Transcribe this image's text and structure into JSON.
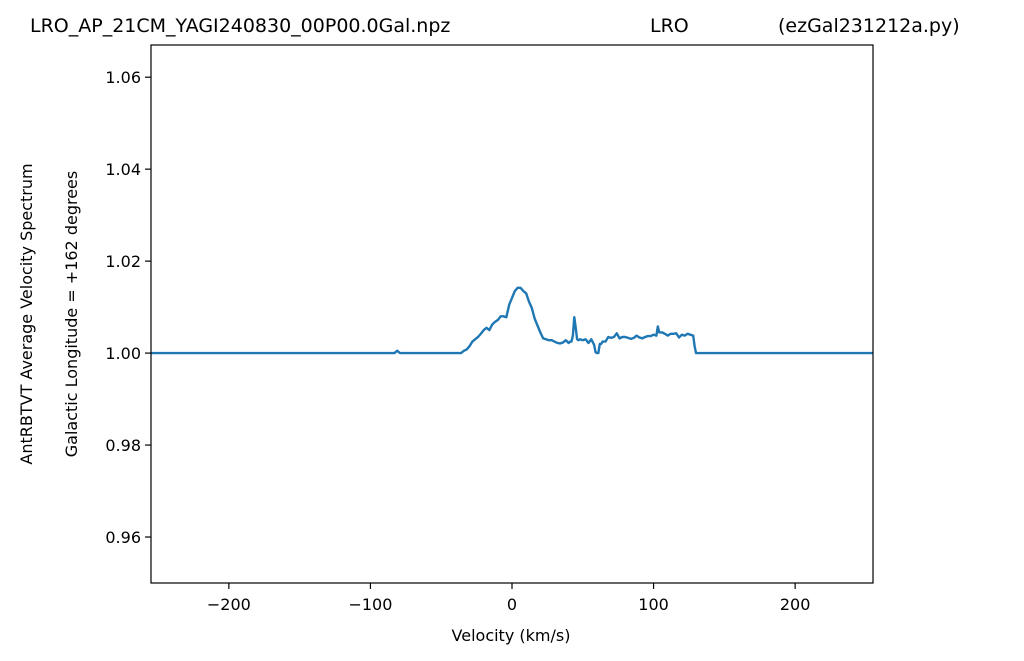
{
  "title": {
    "left": "LRO_AP_21CM_YAGI240830_00P00.0Gal.npz",
    "center": "LRO",
    "right": "(ezGal231212a.py)"
  },
  "chart_data": {
    "type": "line",
    "title": "LRO_AP_21CM_YAGI240830_00P00.0Gal.npz LRO (ezGal231212a.py)",
    "xlabel": "Velocity (km/s)",
    "ylabel": "AntRBTVT Average Velocity Spectrum",
    "ylabel2": "Galactic Longitude = +162 degrees",
    "xlim": [
      -255,
      255
    ],
    "ylim": [
      0.95,
      1.067
    ],
    "xticks": [
      -200,
      -100,
      0,
      100,
      200
    ],
    "xtick_labels": [
      "−200",
      "−100",
      "0",
      "100",
      "200"
    ],
    "yticks": [
      0.96,
      0.98,
      1.0,
      1.02,
      1.04,
      1.06
    ],
    "ytick_labels": [
      "0.96",
      "0.98",
      "1.00",
      "1.02",
      "1.04",
      "1.06"
    ],
    "grid": false,
    "series": [
      {
        "color": "#1f77b4",
        "x": [
          -255,
          -83,
          -82,
          -81,
          -80,
          -79,
          -36,
          -34,
          -32,
          -30,
          -28,
          -26,
          -24,
          -22,
          -20,
          -18,
          -16,
          -14,
          -12,
          -10,
          -8,
          -6,
          -4,
          -2,
          0,
          2,
          4,
          6,
          8,
          10,
          12,
          14,
          16,
          18,
          20,
          22,
          24,
          26,
          28,
          30,
          32,
          34,
          36,
          38,
          40,
          41,
          42,
          43,
          44,
          45,
          46,
          47,
          48,
          50,
          52,
          54,
          56,
          58,
          59,
          60,
          61,
          62,
          63,
          64,
          66,
          68,
          70,
          72,
          74,
          76,
          78,
          80,
          82,
          84,
          86,
          88,
          90,
          92,
          94,
          96,
          98,
          100,
          102,
          103,
          104,
          106,
          108,
          110,
          112,
          114,
          116,
          118,
          120,
          122,
          124,
          126,
          128,
          129,
          130,
          131,
          255
        ],
        "y": [
          1.0,
          1.0,
          1.0003,
          1.0005,
          1.0002,
          1.0,
          1.0,
          1.0005,
          1.0008,
          1.0015,
          1.0025,
          1.003,
          1.0035,
          1.0042,
          1.005,
          1.0055,
          1.005,
          1.0062,
          1.0068,
          1.0072,
          1.008,
          1.008,
          1.0078,
          1.0105,
          1.012,
          1.0135,
          1.0142,
          1.0142,
          1.0135,
          1.013,
          1.0112,
          1.0098,
          1.0075,
          1.006,
          1.0045,
          1.0032,
          1.003,
          1.0028,
          1.0028,
          1.0025,
          1.0022,
          1.0021,
          1.0023,
          1.0028,
          1.0022,
          1.0025,
          1.0025,
          1.0038,
          1.0078,
          1.0055,
          1.003,
          1.0028,
          1.003,
          1.0028,
          1.003,
          1.0022,
          1.003,
          1.0018,
          1.0002,
          1.0,
          1.0,
          1.002,
          1.002,
          1.0025,
          1.0025,
          1.0035,
          1.0033,
          1.0035,
          1.0043,
          1.0032,
          1.0035,
          1.0035,
          1.0033,
          1.0031,
          1.0033,
          1.0038,
          1.0034,
          1.0032,
          1.0035,
          1.0037,
          1.0037,
          1.004,
          1.0038,
          1.0058,
          1.0045,
          1.0045,
          1.0042,
          1.0038,
          1.0042,
          1.0042,
          1.0043,
          1.0034,
          1.004,
          1.0038,
          1.0042,
          1.004,
          1.0038,
          1.0015,
          1.0,
          1.0,
          1.0
        ]
      }
    ]
  }
}
